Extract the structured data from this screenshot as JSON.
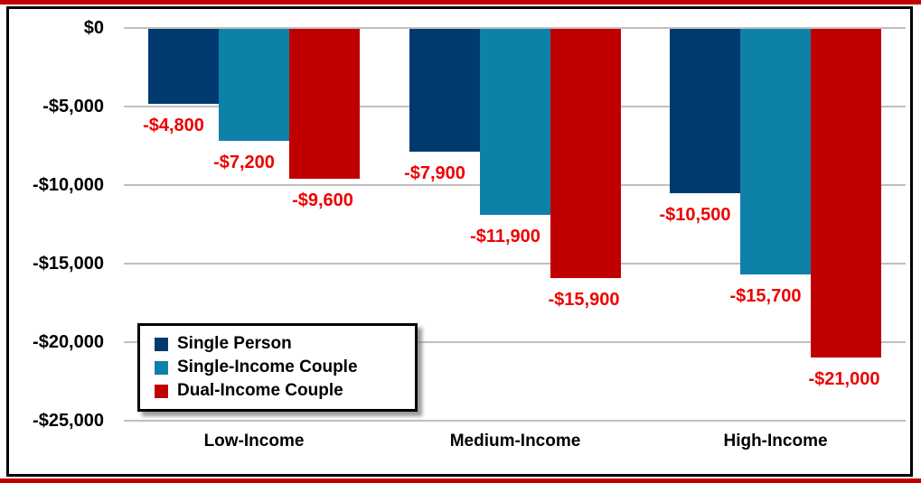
{
  "chart_data": {
    "type": "bar",
    "orientation": "vertical-negative",
    "categories": [
      "Low-Income",
      "Medium-Income",
      "High-Income"
    ],
    "series": [
      {
        "name": "Single Person",
        "color": "#003A70",
        "values": [
          -4800,
          -7900,
          -10500
        ],
        "labels": [
          "-$4,800",
          "-$7,900",
          "-$10,500"
        ]
      },
      {
        "name": "Single-Income Couple",
        "color": "#0E81A8",
        "values": [
          -7200,
          -11900,
          -15700
        ],
        "labels": [
          "-$7,200",
          "-$11,900",
          "-$15,700"
        ]
      },
      {
        "name": "Dual-Income Couple",
        "color": "#C00000",
        "values": [
          -9600,
          -15900,
          -21000
        ],
        "labels": [
          "-$9,600",
          "-$15,900",
          "-$21,000"
        ]
      }
    ],
    "y_axis": {
      "min": -25000,
      "max": 0,
      "step": 5000,
      "ticks": [
        0,
        -5000,
        -10000,
        -15000,
        -20000,
        -25000
      ],
      "tick_labels": [
        "$0",
        "-$5,000",
        "-$10,000",
        "-$15,000",
        "-$20,000",
        "-$25,000"
      ]
    },
    "legend": {
      "position": "inside-bottom-left",
      "border": "#000000"
    },
    "style": {
      "data_label_color": "#EE0000",
      "gridline_color": "#BFBFBF",
      "axis_text_color": "#000000",
      "accent_strip_color": "#C00000",
      "frame_border_color": "#000000",
      "background": "#FFFFFF"
    },
    "grid": true,
    "title": ""
  }
}
